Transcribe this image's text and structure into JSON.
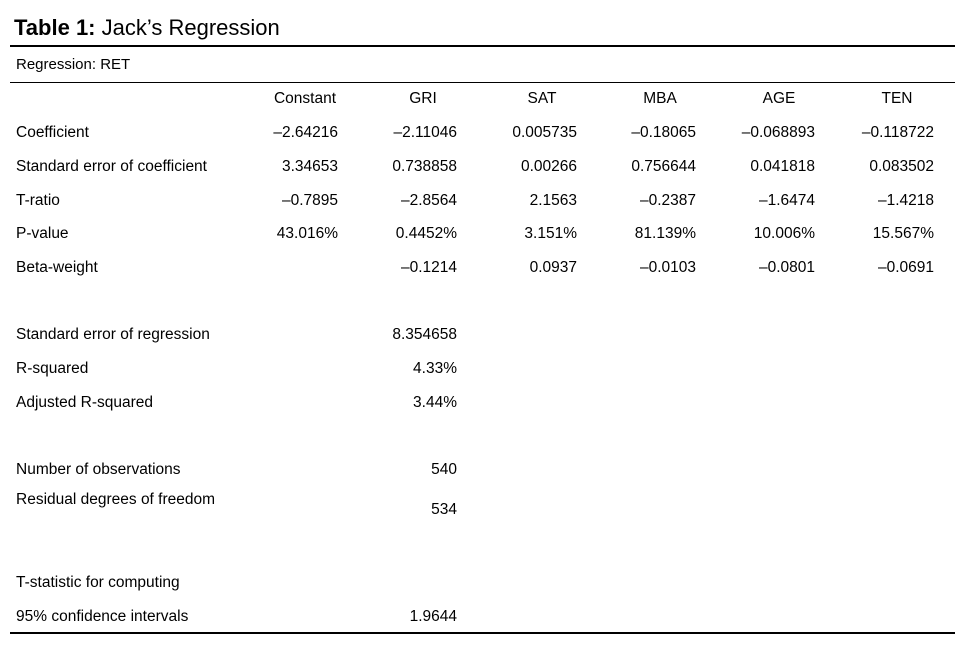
{
  "table": {
    "title_label": "Table 1:",
    "title_text": "Jack’s Regression",
    "subtitle": "Regression: RET",
    "columns": [
      "Constant",
      "GRI",
      "SAT",
      "MBA",
      "AGE",
      "TEN"
    ],
    "rows": [
      {
        "label": "Coefficient",
        "values": [
          "–2.64216",
          "–2.11046",
          "0.005735",
          "–0.18065",
          "–0.068893",
          "–0.118722"
        ]
      },
      {
        "label": "Standard error of coefficient",
        "values": [
          "3.34653",
          "0.738858",
          "0.00266",
          "0.756644",
          "0.041818",
          "0.083502"
        ]
      },
      {
        "label": "T-ratio",
        "values": [
          "–0.7895",
          "–2.8564",
          "2.1563",
          "–0.2387",
          "–1.6474",
          "–1.4218"
        ]
      },
      {
        "label": "P-value",
        "values": [
          "43.016%",
          "0.4452%",
          "3.151%",
          "81.139%",
          "10.006%",
          "15.567%"
        ]
      },
      {
        "label": "Beta-weight",
        "values": [
          "",
          "–0.1214",
          "0.0937",
          "–0.0103",
          "–0.0801",
          "–0.0691"
        ]
      }
    ],
    "summary": [
      {
        "label": "Standard error of regression",
        "value": "8.354658"
      },
      {
        "label": "R-squared",
        "value": "4.33%"
      },
      {
        "label": "Adjusted R-squared",
        "value": "3.44%"
      },
      {
        "label": "Number of observations",
        "value": "540"
      },
      {
        "label": "Residual degrees of freedom",
        "value": "534"
      },
      {
        "label": "T-statistic for computing",
        "value": ""
      },
      {
        "label": "95% confidence intervals",
        "value": "1.9644"
      }
    ]
  }
}
